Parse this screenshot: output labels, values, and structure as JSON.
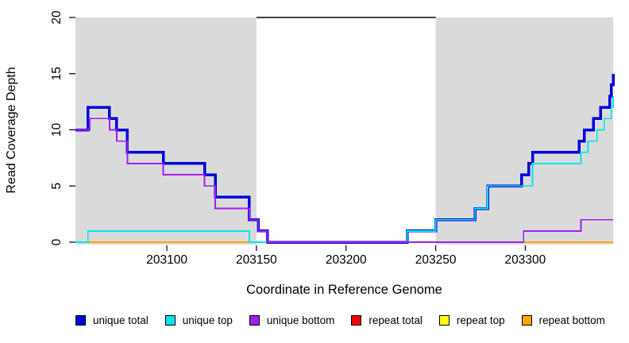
{
  "chart_data": {
    "type": "line",
    "subtype": "step",
    "title": "",
    "xlabel": "Coordinate in Reference Genome",
    "ylabel": "Read Coverage Depth",
    "xlim": [
      203049,
      203349
    ],
    "ylim": [
      0,
      20
    ],
    "grid": false,
    "legend_position": "bottom",
    "xticks": [
      203100,
      203150,
      203200,
      203250,
      203300
    ],
    "yticks": [
      0,
      5,
      10,
      15,
      20
    ],
    "colors": {
      "band": "#DADADA",
      "axis": "#000000",
      "clip_line": "#000000",
      "unique_total": "#0000DD",
      "unique_top": "#00E5EE",
      "unique_bottom": "#A020F0",
      "repeat_total": "#FF0000",
      "repeat_top": "#FFFF00",
      "repeat_bottom": "#FFA500"
    },
    "shaded_bands": [
      {
        "from": 203049,
        "to": 203150
      },
      {
        "from": 203250,
        "to": 203349
      }
    ],
    "clip_segment": {
      "from": 203150,
      "to": 203250,
      "value": 20
    },
    "series": [
      {
        "name": "repeat total",
        "color": "#FF0000",
        "width": 1.5,
        "steps": [
          [
            203049,
            0
          ]
        ]
      },
      {
        "name": "repeat top",
        "color": "#FFFF00",
        "width": 1.5,
        "steps": [
          [
            203049,
            0
          ]
        ]
      },
      {
        "name": "repeat bottom",
        "color": "#FFA500",
        "width": 2,
        "steps": [
          [
            203049,
            0
          ]
        ]
      },
      {
        "name": "unique total",
        "color": "#0000DD",
        "width": 3.5,
        "steps": [
          [
            203049,
            10
          ],
          [
            203056,
            12
          ],
          [
            203068,
            11
          ],
          [
            203072,
            10
          ],
          [
            203078,
            8
          ],
          [
            203098,
            7
          ],
          [
            203121,
            6
          ],
          [
            203127,
            4
          ],
          [
            203146,
            2
          ],
          [
            203151,
            1
          ],
          [
            203156,
            0
          ],
          [
            203234,
            1
          ],
          [
            203250,
            2
          ],
          [
            203272,
            3
          ],
          [
            203279,
            5
          ],
          [
            203298,
            6
          ],
          [
            203302,
            7
          ],
          [
            203304,
            8
          ],
          [
            203330,
            9
          ],
          [
            203333,
            10
          ],
          [
            203338,
            11
          ],
          [
            203342,
            12
          ],
          [
            203347,
            13
          ],
          [
            203348,
            14
          ],
          [
            203349,
            15
          ]
        ]
      },
      {
        "name": "unique top",
        "color": "#00E5EE",
        "width": 1.8,
        "steps": [
          [
            203049,
            0
          ],
          [
            203056,
            1
          ],
          [
            203146,
            0
          ],
          [
            203234,
            1
          ],
          [
            203250,
            2
          ],
          [
            203272,
            3
          ],
          [
            203279,
            5
          ],
          [
            203304,
            7
          ],
          [
            203331,
            8
          ],
          [
            203335,
            9
          ],
          [
            203340,
            10
          ],
          [
            203344,
            11
          ],
          [
            203348,
            12
          ],
          [
            203349,
            13
          ]
        ]
      },
      {
        "name": "unique bottom",
        "color": "#A020F0",
        "width": 1.8,
        "steps": [
          [
            203049,
            10
          ],
          [
            203057,
            11
          ],
          [
            203068,
            10
          ],
          [
            203072,
            9
          ],
          [
            203078,
            7
          ],
          [
            203098,
            6
          ],
          [
            203121,
            5
          ],
          [
            203127,
            3
          ],
          [
            203146,
            2
          ],
          [
            203151,
            1
          ],
          [
            203156,
            0
          ],
          [
            203299,
            1
          ],
          [
            203331,
            2
          ]
        ]
      }
    ],
    "legend": [
      {
        "label": "unique total",
        "color": "#0000DD"
      },
      {
        "label": "unique top",
        "color": "#00E5EE"
      },
      {
        "label": "unique bottom",
        "color": "#A020F0"
      },
      {
        "label": "repeat total",
        "color": "#FF0000"
      },
      {
        "label": "repeat top",
        "color": "#FFFF00"
      },
      {
        "label": "repeat bottom",
        "color": "#FFA500"
      }
    ]
  }
}
